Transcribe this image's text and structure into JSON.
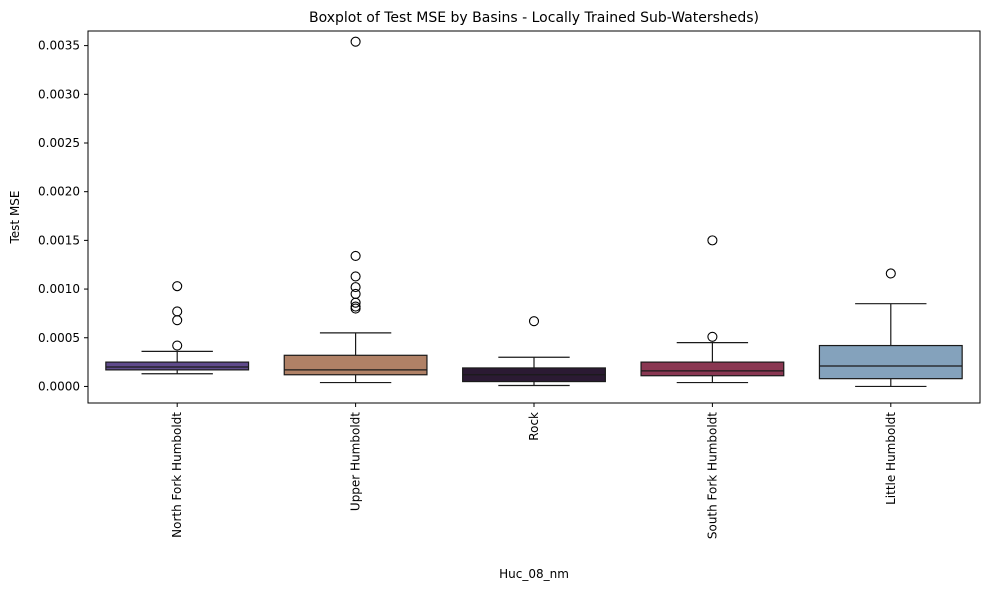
{
  "chart_data": {
    "type": "boxplot",
    "title": "Boxplot of Test MSE by Basins - Locally Trained Sub-Watersheds)",
    "xlabel": "Huc_08_nm",
    "ylabel": "Test MSE",
    "ylim": [
      -0.00017,
      0.00365
    ],
    "yticks": [
      0.0,
      0.0005,
      0.001,
      0.0015,
      0.002,
      0.0025,
      0.003,
      0.0035
    ],
    "ytick_labels": [
      "0.0000",
      "0.0005",
      "0.0010",
      "0.0015",
      "0.0020",
      "0.0025",
      "0.0030",
      "0.0035"
    ],
    "grid": false,
    "categories": [
      "North Fork Humboldt",
      "Upper Humboldt",
      "Rock",
      "South Fork Humboldt",
      "Little Humboldt"
    ],
    "boxes": [
      {
        "category": "North Fork Humboldt",
        "color": "#5f4a8b",
        "whisker_low": 0.00013,
        "q1": 0.00017,
        "median": 0.0002,
        "q3": 0.00025,
        "whisker_high": 0.00036,
        "outliers": [
          0.00042,
          0.00068,
          0.00077,
          0.00103
        ]
      },
      {
        "category": "Upper Humboldt",
        "color": "#b08166",
        "whisker_low": 4e-05,
        "q1": 0.00012,
        "median": 0.00017,
        "q3": 0.00032,
        "whisker_high": 0.00055,
        "outliers": [
          0.0008,
          0.00082,
          0.00086,
          0.00095,
          0.00102,
          0.00113,
          0.00134,
          0.00354
        ]
      },
      {
        "category": "Rock",
        "color": "#2b1a33",
        "whisker_low": 1e-05,
        "q1": 5e-05,
        "median": 0.00012,
        "q3": 0.00019,
        "whisker_high": 0.0003,
        "outliers": [
          0.00067
        ]
      },
      {
        "category": "South Fork Humboldt",
        "color": "#8a3752",
        "whisker_low": 4e-05,
        "q1": 0.00011,
        "median": 0.00016,
        "q3": 0.00025,
        "whisker_high": 0.00045,
        "outliers": [
          0.00051,
          0.0015
        ]
      },
      {
        "category": "Little Humboldt",
        "color": "#84a2bc",
        "whisker_low": 0.0,
        "q1": 8e-05,
        "median": 0.00021,
        "q3": 0.00042,
        "whisker_high": 0.00085,
        "outliers": [
          0.00116
        ]
      }
    ]
  }
}
